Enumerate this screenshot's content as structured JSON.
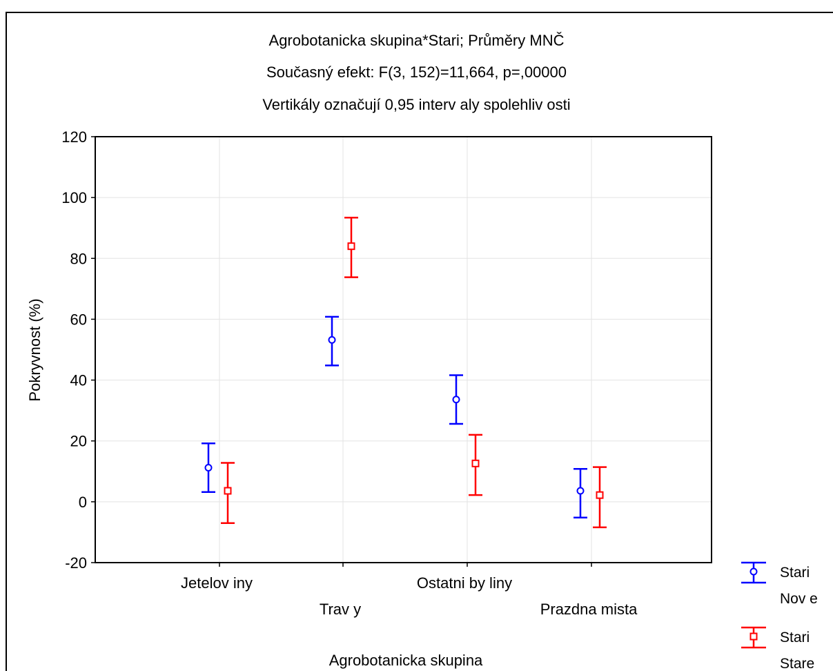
{
  "chart_data": {
    "type": "scatter",
    "title": "Agrobotanicka skupina*Stari; Průměry MNČ",
    "subtitle": "Současný efekt: F(3, 152)=11,664, p=,00000",
    "note": "Vertikály označují 0,95 interv aly spolehliv osti",
    "xlabel": "Agrobotanicka skupina",
    "ylabel": "Pokryvnost (%)",
    "ylim": [
      -20,
      120
    ],
    "yticks": [
      -20,
      0,
      20,
      40,
      60,
      80,
      100,
      120
    ],
    "grid": true,
    "legend_position": "bottom-right outside",
    "categories": [
      "Jetelov iny",
      "Trav y",
      "Ostatni by liny",
      "Prazdna mista"
    ],
    "series": [
      {
        "name": "Nov e",
        "legend_header": "Stari",
        "marker": "circle",
        "color": "#0000ff",
        "values": [
          11.2,
          53.2,
          33.6,
          3.6
        ],
        "ci_low": [
          3.2,
          44.8,
          25.6,
          -5.2
        ],
        "ci_high": [
          19.2,
          60.8,
          41.6,
          10.8
        ]
      },
      {
        "name": "Stare",
        "legend_header": "Stari",
        "marker": "square",
        "color": "#ff0000",
        "values": [
          3.6,
          84.0,
          12.6,
          2.2
        ],
        "ci_low": [
          -7.0,
          73.8,
          2.2,
          -8.4
        ],
        "ci_high": [
          12.8,
          93.4,
          22.0,
          11.4
        ]
      }
    ]
  }
}
